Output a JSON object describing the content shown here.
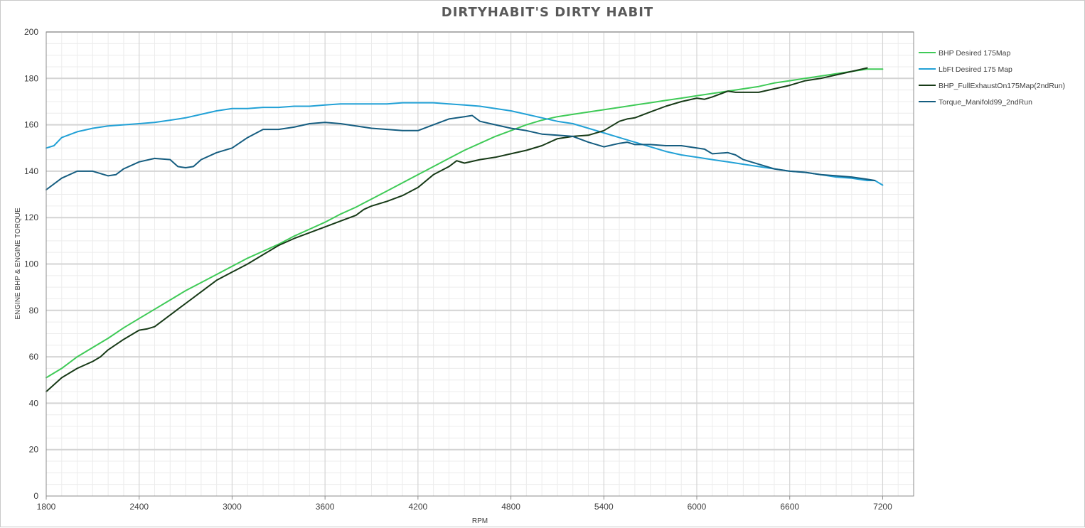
{
  "chart_data": {
    "type": "line",
    "title": "DIRTYHABIT'S DIRTY HABIT",
    "xlabel": "RPM",
    "ylabel": "ENGINE BHP & ENGINE TORQUE",
    "xlim": [
      1800,
      7400
    ],
    "ylim": [
      0,
      200
    ],
    "x_ticks": [
      1800,
      2400,
      3000,
      3600,
      4200,
      4800,
      5400,
      6000,
      6600,
      7200
    ],
    "y_ticks": [
      0,
      20,
      40,
      60,
      80,
      100,
      120,
      140,
      160,
      180,
      200
    ],
    "grid": true,
    "legend_position": "right",
    "series": [
      {
        "name": "BHP Desired 175Map",
        "color": "#3fca57",
        "points": [
          [
            1800,
            51
          ],
          [
            1900,
            55
          ],
          [
            2000,
            60
          ],
          [
            2100,
            64
          ],
          [
            2200,
            68
          ],
          [
            2300,
            72.5
          ],
          [
            2400,
            76.5
          ],
          [
            2500,
            80.5
          ],
          [
            2600,
            84.5
          ],
          [
            2700,
            88.5
          ],
          [
            2800,
            92
          ],
          [
            2900,
            95.5
          ],
          [
            3000,
            99
          ],
          [
            3100,
            102.5
          ],
          [
            3200,
            105.5
          ],
          [
            3300,
            108.5
          ],
          [
            3400,
            112
          ],
          [
            3500,
            115
          ],
          [
            3600,
            118
          ],
          [
            3700,
            121.5
          ],
          [
            3800,
            124.5
          ],
          [
            3900,
            128
          ],
          [
            4000,
            131.5
          ],
          [
            4100,
            135
          ],
          [
            4200,
            138.5
          ],
          [
            4300,
            142
          ],
          [
            4400,
            145.5
          ],
          [
            4500,
            149
          ],
          [
            4600,
            152
          ],
          [
            4700,
            155
          ],
          [
            4800,
            157.5
          ],
          [
            4900,
            160
          ],
          [
            5000,
            162
          ],
          [
            5100,
            163.5
          ],
          [
            5200,
            164.5
          ],
          [
            5300,
            165.5
          ],
          [
            5400,
            166.5
          ],
          [
            5500,
            167.5
          ],
          [
            5600,
            168.5
          ],
          [
            5700,
            169.5
          ],
          [
            5800,
            170.5
          ],
          [
            5900,
            171.5
          ],
          [
            6000,
            172.5
          ],
          [
            6100,
            173.5
          ],
          [
            6200,
            174.5
          ],
          [
            6300,
            175.5
          ],
          [
            6400,
            176.5
          ],
          [
            6500,
            178
          ],
          [
            6600,
            179
          ],
          [
            6700,
            180
          ],
          [
            6800,
            181
          ],
          [
            6900,
            182
          ],
          [
            7000,
            183
          ],
          [
            7100,
            184
          ],
          [
            7200,
            184
          ]
        ]
      },
      {
        "name": "LbFt Desired 175 Map",
        "color": "#22a1d6",
        "points": [
          [
            1800,
            150
          ],
          [
            1850,
            151
          ],
          [
            1900,
            154.5
          ],
          [
            2000,
            157
          ],
          [
            2100,
            158.5
          ],
          [
            2200,
            159.5
          ],
          [
            2300,
            160
          ],
          [
            2400,
            160.5
          ],
          [
            2500,
            161
          ],
          [
            2600,
            162
          ],
          [
            2700,
            163
          ],
          [
            2800,
            164.5
          ],
          [
            2900,
            166
          ],
          [
            3000,
            167
          ],
          [
            3100,
            167
          ],
          [
            3200,
            167.5
          ],
          [
            3300,
            167.5
          ],
          [
            3400,
            168
          ],
          [
            3500,
            168
          ],
          [
            3600,
            168.5
          ],
          [
            3700,
            169
          ],
          [
            3800,
            169
          ],
          [
            3900,
            169
          ],
          [
            4000,
            169
          ],
          [
            4100,
            169.5
          ],
          [
            4200,
            169.5
          ],
          [
            4300,
            169.5
          ],
          [
            4400,
            169
          ],
          [
            4500,
            168.5
          ],
          [
            4600,
            168
          ],
          [
            4700,
            167
          ],
          [
            4800,
            166
          ],
          [
            4900,
            164.5
          ],
          [
            5000,
            163
          ],
          [
            5100,
            161.5
          ],
          [
            5200,
            160.5
          ],
          [
            5300,
            158.5
          ],
          [
            5400,
            156.5
          ],
          [
            5500,
            154.5
          ],
          [
            5600,
            152.5
          ],
          [
            5700,
            150.5
          ],
          [
            5800,
            148.5
          ],
          [
            5900,
            147
          ],
          [
            6000,
            146
          ],
          [
            6100,
            145
          ],
          [
            6200,
            144
          ],
          [
            6300,
            143
          ],
          [
            6400,
            142
          ],
          [
            6500,
            141
          ],
          [
            6600,
            140
          ],
          [
            6700,
            139.5
          ],
          [
            6800,
            138.5
          ],
          [
            6900,
            137.5
          ],
          [
            7000,
            137
          ],
          [
            7100,
            136
          ],
          [
            7150,
            136
          ],
          [
            7200,
            134
          ]
        ]
      },
      {
        "name": "BHP_FullExhaustOn175Map(2ndRun)",
        "color": "#173a17",
        "points": [
          [
            1800,
            45
          ],
          [
            1900,
            51
          ],
          [
            2000,
            55
          ],
          [
            2100,
            58
          ],
          [
            2150,
            60
          ],
          [
            2200,
            63
          ],
          [
            2300,
            67.5
          ],
          [
            2400,
            71.5
          ],
          [
            2450,
            72
          ],
          [
            2500,
            73
          ],
          [
            2600,
            78
          ],
          [
            2700,
            83
          ],
          [
            2800,
            88
          ],
          [
            2900,
            93
          ],
          [
            3000,
            96.5
          ],
          [
            3100,
            100
          ],
          [
            3200,
            104
          ],
          [
            3300,
            108
          ],
          [
            3400,
            111
          ],
          [
            3500,
            113.5
          ],
          [
            3600,
            116
          ],
          [
            3700,
            118.5
          ],
          [
            3800,
            121
          ],
          [
            3850,
            123.5
          ],
          [
            3900,
            125
          ],
          [
            4000,
            127
          ],
          [
            4100,
            129.5
          ],
          [
            4200,
            133
          ],
          [
            4300,
            138.5
          ],
          [
            4400,
            142
          ],
          [
            4450,
            144.5
          ],
          [
            4500,
            143.5
          ],
          [
            4600,
            145
          ],
          [
            4700,
            146
          ],
          [
            4800,
            147.5
          ],
          [
            4900,
            149
          ],
          [
            5000,
            151
          ],
          [
            5100,
            154
          ],
          [
            5200,
            155
          ],
          [
            5300,
            155.5
          ],
          [
            5400,
            157.5
          ],
          [
            5500,
            161.5
          ],
          [
            5550,
            162.5
          ],
          [
            5600,
            163
          ],
          [
            5700,
            165.5
          ],
          [
            5800,
            168
          ],
          [
            5900,
            170
          ],
          [
            6000,
            171.5
          ],
          [
            6050,
            171
          ],
          [
            6100,
            172
          ],
          [
            6200,
            174.5
          ],
          [
            6250,
            174
          ],
          [
            6300,
            174
          ],
          [
            6400,
            174
          ],
          [
            6500,
            175.5
          ],
          [
            6600,
            177
          ],
          [
            6700,
            179
          ],
          [
            6800,
            180
          ],
          [
            6900,
            181.5
          ],
          [
            7000,
            183
          ],
          [
            7100,
            184.5
          ]
        ]
      },
      {
        "name": "Torque_Manifold99_2ndRun",
        "color": "#155d80",
        "points": [
          [
            1800,
            132
          ],
          [
            1900,
            137
          ],
          [
            2000,
            140
          ],
          [
            2100,
            140
          ],
          [
            2200,
            138
          ],
          [
            2250,
            138.5
          ],
          [
            2300,
            141
          ],
          [
            2400,
            144
          ],
          [
            2500,
            145.5
          ],
          [
            2600,
            145
          ],
          [
            2650,
            142
          ],
          [
            2700,
            141.5
          ],
          [
            2750,
            142
          ],
          [
            2800,
            145
          ],
          [
            2900,
            148
          ],
          [
            3000,
            150
          ],
          [
            3100,
            154.5
          ],
          [
            3200,
            158
          ],
          [
            3300,
            158
          ],
          [
            3400,
            159
          ],
          [
            3500,
            160.5
          ],
          [
            3600,
            161
          ],
          [
            3700,
            160.5
          ],
          [
            3800,
            159.5
          ],
          [
            3900,
            158.5
          ],
          [
            4000,
            158
          ],
          [
            4100,
            157.5
          ],
          [
            4200,
            157.5
          ],
          [
            4300,
            160
          ],
          [
            4400,
            162.5
          ],
          [
            4500,
            163.5
          ],
          [
            4550,
            164
          ],
          [
            4600,
            161.5
          ],
          [
            4700,
            160
          ],
          [
            4800,
            158.5
          ],
          [
            4900,
            157.5
          ],
          [
            5000,
            156
          ],
          [
            5100,
            155.5
          ],
          [
            5200,
            155
          ],
          [
            5300,
            152.5
          ],
          [
            5400,
            150.5
          ],
          [
            5500,
            152
          ],
          [
            5550,
            152.5
          ],
          [
            5600,
            151.5
          ],
          [
            5700,
            151.5
          ],
          [
            5800,
            151
          ],
          [
            5900,
            151
          ],
          [
            6000,
            150
          ],
          [
            6050,
            149.5
          ],
          [
            6100,
            147.5
          ],
          [
            6200,
            148
          ],
          [
            6250,
            147
          ],
          [
            6300,
            145
          ],
          [
            6400,
            143
          ],
          [
            6500,
            141
          ],
          [
            6600,
            140
          ],
          [
            6700,
            139.5
          ],
          [
            6800,
            138.5
          ],
          [
            6900,
            138
          ],
          [
            7000,
            137.5
          ],
          [
            7100,
            136.5
          ],
          [
            7150,
            136
          ]
        ]
      }
    ]
  }
}
